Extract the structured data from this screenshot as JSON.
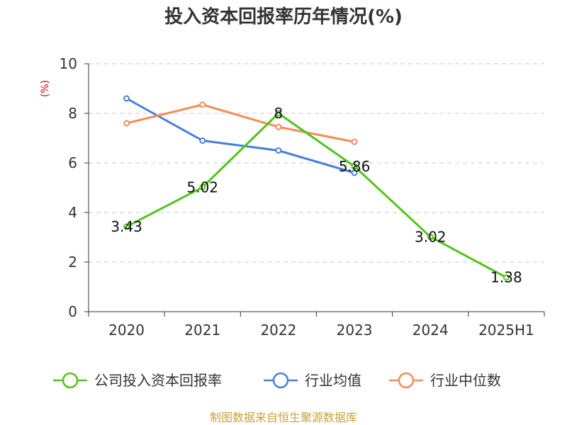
{
  "chart_data": {
    "type": "line",
    "title": "投入资本回报率历年情况(%)",
    "ylabel": "(%)",
    "ylim": [
      0,
      10
    ],
    "yticks": [
      0,
      2,
      4,
      6,
      8,
      10
    ],
    "categories": [
      "2020",
      "2021",
      "2022",
      "2023",
      "2024",
      "2025H1"
    ],
    "grid": true,
    "legend_position": "bottom",
    "series": [
      {
        "name": "公司投入资本回报率",
        "color": "#52c41a",
        "values": [
          3.43,
          5.02,
          8,
          5.86,
          3.02,
          1.38
        ],
        "labels": [
          "3.43",
          "5.02",
          "8",
          "5.86",
          "3.02",
          "1.38"
        ]
      },
      {
        "name": "行业均值",
        "color": "#4a7fd8",
        "values": [
          8.6,
          6.9,
          6.5,
          5.6,
          null,
          null
        ]
      },
      {
        "name": "行业中位数",
        "color": "#f58c5a",
        "values": [
          7.6,
          8.35,
          7.45,
          6.85,
          null,
          null
        ]
      }
    ],
    "source": "制图数据来自恒生聚源数据库"
  }
}
